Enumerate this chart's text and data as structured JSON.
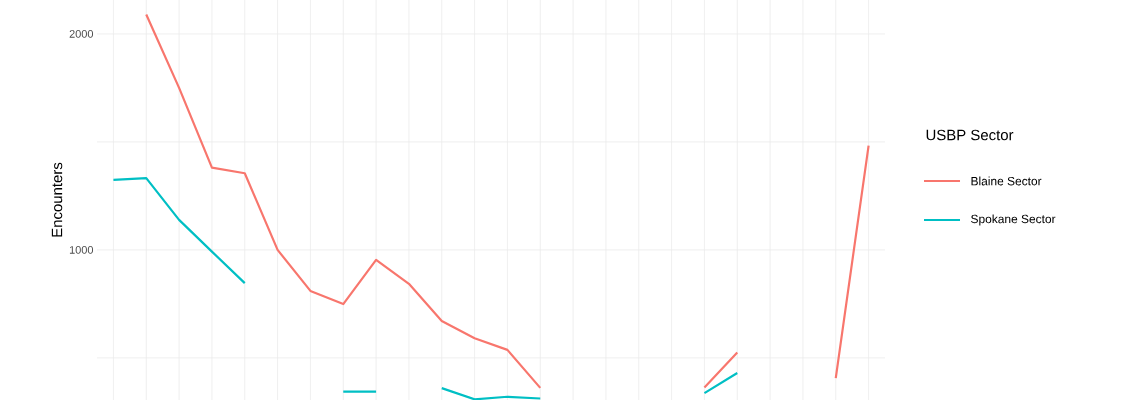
{
  "chart_data": {
    "type": "line",
    "ylabel": "Encounters",
    "legend_title": "USBP Sector",
    "categories": [
      null,
      null,
      null,
      null,
      null,
      null,
      null,
      null,
      null,
      null,
      null,
      null,
      null,
      null,
      null,
      null,
      null,
      null,
      null,
      null,
      null,
      null,
      null,
      null
    ],
    "series": [
      {
        "name": "Blaine Sector",
        "color": "#f8766d",
        "values": [
          null,
          2090,
          1750,
          1381,
          1355,
          1000,
          810,
          749,
          954,
          843,
          671,
          591,
          537,
          361,
          null,
          null,
          null,
          null,
          363,
          525,
          null,
          null,
          406,
          1483
        ]
      },
      {
        "name": "Spokane Sector",
        "color": "#00bfc4",
        "values": [
          1324,
          1332,
          1139,
          992,
          846,
          null,
          null,
          344,
          344,
          null,
          360,
          308,
          320,
          312,
          null,
          null,
          null,
          null,
          337,
          430,
          null,
          null,
          null,
          null
        ]
      }
    ],
    "ylim": [
      305,
      2157
    ],
    "yticks": [
      {
        "value": 500,
        "label": null
      },
      1000,
      {
        "value": 1500,
        "label": null
      },
      2000
    ],
    "grid": true,
    "legend": "right",
    "marker": "none",
    "line_style": "solid"
  }
}
